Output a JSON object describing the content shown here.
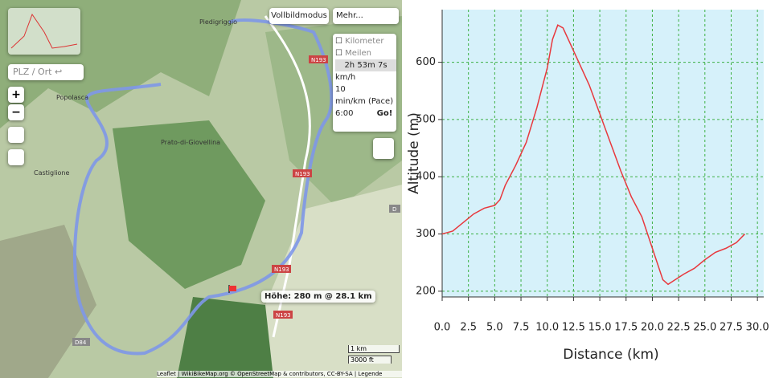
{
  "map": {
    "fullscreen": "Vollbildmodus",
    "more": "Mehr...",
    "unit_km": "Kilometer",
    "unit_mi": "Meilen",
    "duration": "2h 53m 7s",
    "speed_label": "km/h",
    "speed": "10",
    "pace_label": "min/km (Pace)",
    "pace": "6:00",
    "go": "Go!",
    "search": "PLZ / Ort ↩",
    "zoom_in": "+",
    "zoom_out": "−",
    "tooltip": "Höhe: 280 m @ 28.1 km",
    "scale_metric": "1 km",
    "scale_imperial": "3000 ft",
    "places": [
      "Piedigriggio",
      "Popolasca",
      "Prato-di-Giovellina",
      "Castiglione"
    ],
    "roads": [
      "N193",
      "N193",
      "N193",
      "N193",
      "D84",
      "D"
    ],
    "attribution": "Leaflet | WikiBikeMap.org © OpenStreetMap & contributors, CC-BY-SA | Legende"
  },
  "chart_data": {
    "type": "line",
    "xlabel": "Distance (km)",
    "ylabel": "Altitude (m)",
    "x": [
      0,
      1,
      2,
      3,
      4,
      5,
      5.5,
      6,
      7,
      8,
      9,
      10,
      10.5,
      11,
      11.5,
      12,
      13,
      14,
      15,
      16,
      17,
      18,
      19,
      20,
      21,
      21.5,
      22,
      23,
      24,
      25,
      26,
      27,
      28,
      28.8
    ],
    "values": [
      300,
      305,
      320,
      335,
      345,
      350,
      360,
      385,
      420,
      460,
      520,
      590,
      640,
      665,
      660,
      640,
      600,
      560,
      510,
      460,
      410,
      365,
      330,
      275,
      220,
      212,
      218,
      230,
      240,
      255,
      268,
      275,
      285,
      300
    ],
    "color": "#e8383d",
    "xlim": [
      0,
      30.6
    ],
    "ylim": [
      190,
      692
    ],
    "xticks": [
      {
        "value": 0,
        "label": "0.0"
      },
      2.5,
      {
        "value": 5,
        "label": "5.0"
      },
      7.5,
      {
        "value": 10,
        "label": "10.0"
      },
      12.5,
      {
        "value": 15,
        "label": "15.0"
      },
      17.5,
      {
        "value": 20,
        "label": "20.0"
      },
      22.5,
      {
        "value": 25,
        "label": "25.0"
      },
      27.5,
      {
        "value": 30,
        "label": "30.0"
      }
    ],
    "yticks": [
      200,
      300,
      400,
      500,
      600
    ],
    "grid": true
  }
}
